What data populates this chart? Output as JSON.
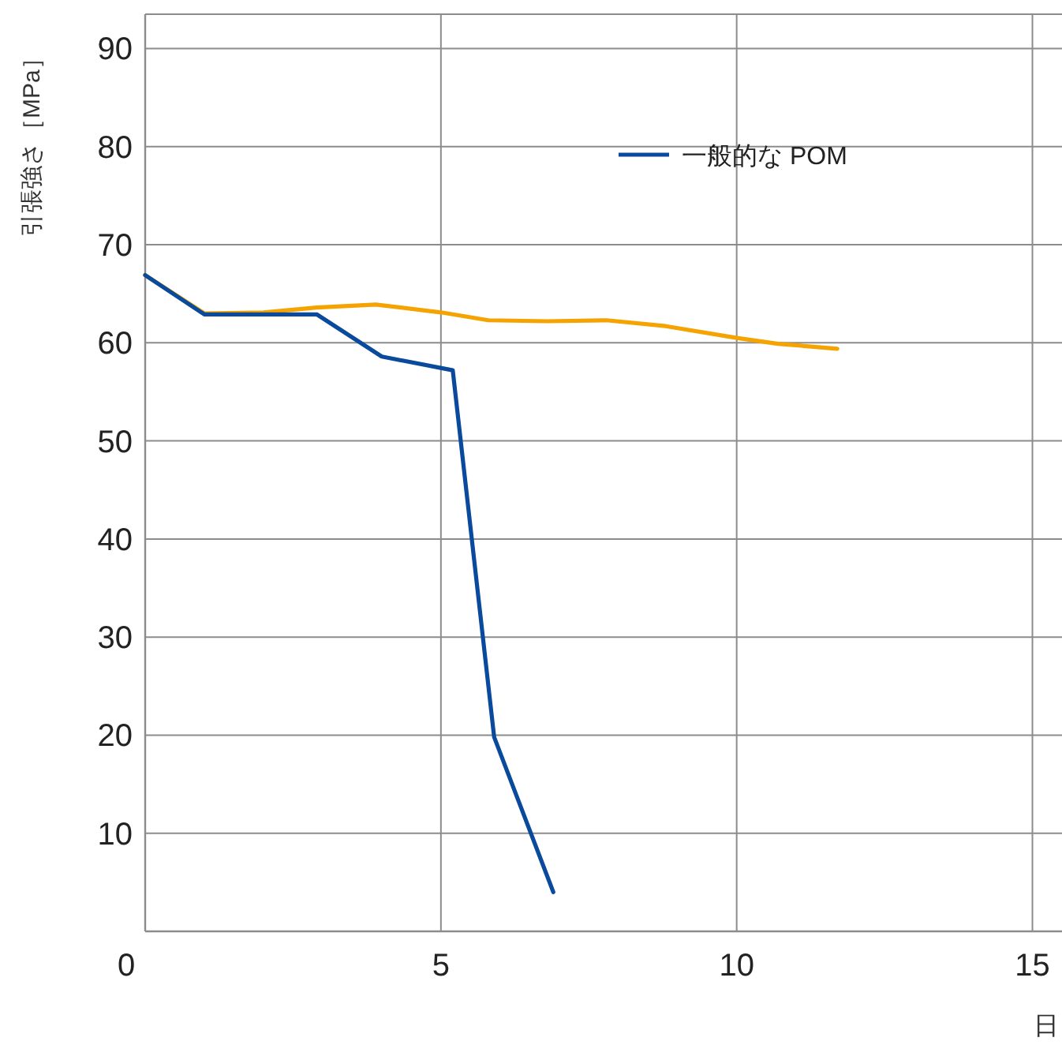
{
  "chart_data": {
    "type": "line",
    "xlabel": "日",
    "ylabel": "引張強さ［MPa］",
    "xlim": [
      0,
      15.5
    ],
    "ylim": [
      0,
      93.5
    ],
    "xticks": [
      0,
      5,
      10,
      15
    ],
    "yticks": [
      10,
      20,
      30,
      40,
      50,
      60,
      70,
      80,
      90
    ],
    "grid": true,
    "legend": "top right",
    "marker": "none",
    "line_style": "solid",
    "series": [
      {
        "color": "#f5a300",
        "x": [
          0,
          1.0,
          2.0,
          2.9,
          3.9,
          5.0,
          5.8,
          6.8,
          7.8,
          8.8,
          10.0,
          10.7,
          11.7
        ],
        "values": [
          66.9,
          63.0,
          63.1,
          63.6,
          63.9,
          63.1,
          62.3,
          62.2,
          62.3,
          61.7,
          60.5,
          59.9,
          59.4
        ]
      },
      {
        "name": "一般的な POM",
        "color": "#0a4a9c",
        "x": [
          0,
          1.0,
          2.9,
          4.0,
          5.2,
          5.9,
          6.9
        ],
        "values": [
          66.9,
          62.9,
          62.9,
          58.6,
          57.2,
          19.8,
          4.0
        ]
      }
    ]
  }
}
